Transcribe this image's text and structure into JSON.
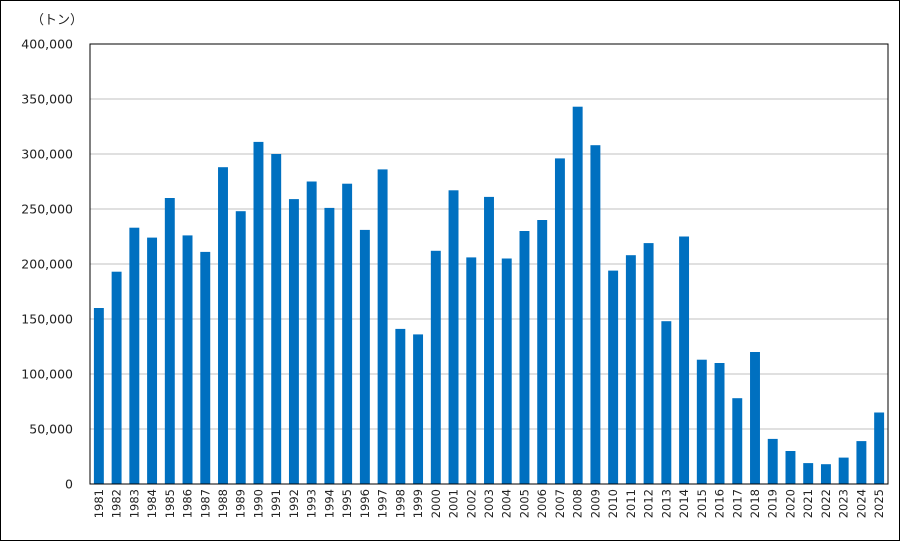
{
  "chart_data": {
    "type": "bar",
    "unit_label": "（トン）",
    "categories": [
      "1981",
      "1982",
      "1983",
      "1984",
      "1985",
      "1986",
      "1987",
      "1988",
      "1989",
      "1990",
      "1991",
      "1992",
      "1993",
      "1994",
      "1995",
      "1996",
      "1997",
      "1998",
      "1999",
      "2000",
      "2001",
      "2002",
      "2003",
      "2004",
      "2005",
      "2006",
      "2007",
      "2008",
      "2009",
      "2010",
      "2011",
      "2012",
      "2013",
      "2014",
      "2015",
      "2016",
      "2017",
      "2018",
      "2019",
      "2020",
      "2021",
      "2022",
      "2023",
      "2024",
      "2025"
    ],
    "values": [
      160000,
      193000,
      233000,
      224000,
      260000,
      226000,
      211000,
      288000,
      248000,
      311000,
      300000,
      259000,
      275000,
      251000,
      273000,
      231000,
      286000,
      141000,
      136000,
      212000,
      267000,
      206000,
      261000,
      205000,
      230000,
      240000,
      296000,
      343000,
      308000,
      194000,
      208000,
      219000,
      148000,
      225000,
      113000,
      110000,
      78000,
      120000,
      41000,
      30000,
      19000,
      18000,
      24000,
      39000,
      65000
    ],
    "ylim": [
      0,
      400000
    ],
    "yticks": [
      0,
      50000,
      100000,
      150000,
      200000,
      250000,
      300000,
      350000,
      400000
    ],
    "ytick_labels": [
      "0",
      "50,000",
      "100,000",
      "150,000",
      "200,000",
      "250,000",
      "300,000",
      "350,000",
      "400,000"
    ],
    "grid": true,
    "legend": "none",
    "bar_color": "#0070C0",
    "grid_color": "#C0C0C0"
  }
}
